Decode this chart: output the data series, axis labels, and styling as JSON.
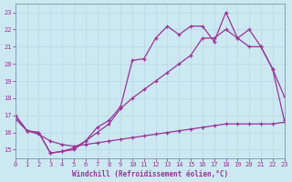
{
  "xlabel": "Windchill (Refroidissement éolien,°C)",
  "bg_color": "#cce8f0",
  "grid_color": "#aaccdd",
  "line_color": "#993399",
  "xlim": [
    0,
    23
  ],
  "ylim": [
    14.5,
    23.5
  ],
  "xticks": [
    0,
    1,
    2,
    3,
    4,
    5,
    6,
    7,
    8,
    9,
    10,
    11,
    12,
    13,
    14,
    15,
    16,
    17,
    18,
    19,
    20,
    21,
    22,
    23
  ],
  "yticks": [
    15,
    16,
    17,
    18,
    19,
    20,
    21,
    22,
    23
  ],
  "line_bottom": {
    "x": [
      0,
      1,
      2,
      3,
      4,
      5,
      6,
      7,
      8,
      9,
      10,
      11,
      12,
      13,
      14,
      15,
      16,
      17,
      18,
      19,
      20,
      21,
      22,
      23
    ],
    "y": [
      16.8,
      16.1,
      15.9,
      15.5,
      15.3,
      15.2,
      15.3,
      15.4,
      15.5,
      15.6,
      15.7,
      15.8,
      15.9,
      16.0,
      16.1,
      16.2,
      16.3,
      16.4,
      16.5,
      16.5,
      16.5,
      16.5,
      16.5,
      16.6
    ]
  },
  "line_mid": {
    "x": [
      0,
      1,
      2,
      3,
      4,
      5,
      6,
      7,
      8,
      9,
      10,
      11,
      12,
      13,
      14,
      15,
      16,
      17,
      18,
      19,
      20,
      21,
      22,
      23
    ],
    "y": [
      17.0,
      16.1,
      16.0,
      14.8,
      14.9,
      15.0,
      15.5,
      16.0,
      16.5,
      17.4,
      18.0,
      18.5,
      19.0,
      19.5,
      20.0,
      20.5,
      21.5,
      21.5,
      22.0,
      21.5,
      21.0,
      21.0,
      19.7,
      16.7
    ]
  },
  "line_top": {
    "x": [
      0,
      1,
      2,
      3,
      4,
      5,
      6,
      7,
      8,
      9,
      10,
      11,
      12,
      13,
      14,
      15,
      16,
      17,
      18,
      19,
      20,
      21,
      22,
      23
    ],
    "y": [
      17.0,
      16.1,
      16.0,
      14.8,
      14.9,
      15.1,
      15.5,
      16.3,
      16.7,
      17.5,
      20.2,
      20.3,
      21.5,
      22.2,
      21.7,
      22.2,
      22.2,
      21.3,
      23.0,
      21.5,
      22.0,
      21.0,
      19.7,
      18.1
    ]
  }
}
